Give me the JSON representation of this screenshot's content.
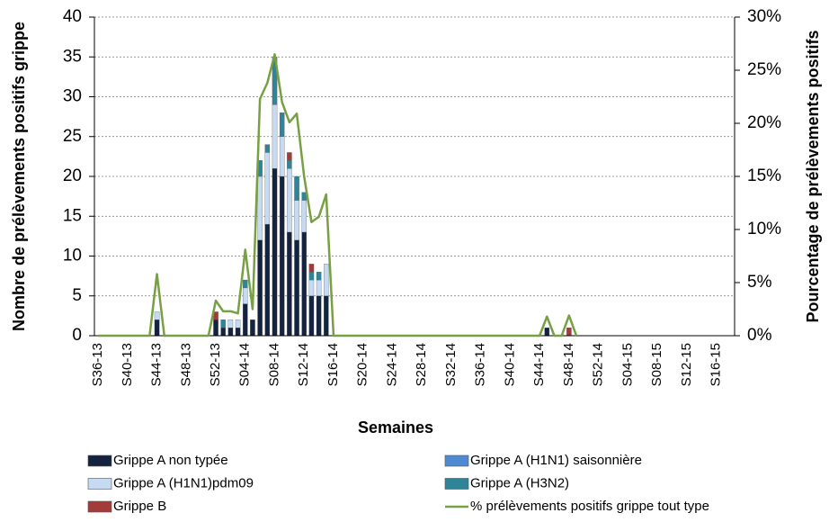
{
  "chart_data": {
    "type": "bar",
    "stacked": true,
    "xlabel": "Semaines",
    "ylabel": "Nombre de prélèvements positifs grippe",
    "y2label": "Pourcentage de prélèvements positifs",
    "categories": [
      "S36-13",
      null,
      null,
      null,
      "S40-13",
      null,
      null,
      null,
      "S44-13",
      null,
      null,
      null,
      "S48-13",
      null,
      null,
      null,
      "S52-13",
      null,
      null,
      null,
      "S04-14",
      null,
      null,
      null,
      "S08-14",
      null,
      null,
      null,
      "S12-14",
      null,
      null,
      null,
      "S16-14",
      null,
      null,
      null,
      "S20-14",
      null,
      null,
      null,
      "S24-14",
      null,
      null,
      null,
      "S28-14",
      null,
      null,
      null,
      "S32-14",
      null,
      null,
      null,
      "S36-14",
      null,
      null,
      null,
      "S40-14",
      null,
      null,
      null,
      "S44-14",
      null,
      null,
      null,
      "S48-14",
      null,
      null,
      null,
      "S52-14",
      null,
      null,
      null,
      "S04-15",
      null,
      null,
      null,
      "S08-15",
      null,
      null,
      null,
      "S12-15",
      null,
      null,
      null,
      "S16-15",
      null,
      null
    ],
    "ylim": [
      0,
      40
    ],
    "yticks": [
      0,
      5,
      10,
      15,
      20,
      25,
      30,
      35,
      40
    ],
    "y2lim": [
      0,
      30
    ],
    "y2ticks": [
      {
        "value": 0,
        "label": "0%"
      },
      {
        "value": 5,
        "label": "5%"
      },
      {
        "value": 10,
        "label": "10%"
      },
      {
        "value": 15,
        "label": "15%"
      },
      {
        "value": 20,
        "label": "20%"
      },
      {
        "value": 25,
        "label": "25%"
      },
      {
        "value": 30,
        "label": "30%"
      }
    ],
    "grid": true,
    "series": [
      {
        "name": "Grippe A non typée",
        "color": "#14233f",
        "values": [
          0,
          0,
          0,
          0,
          0,
          0,
          0,
          0,
          2,
          0,
          0,
          0,
          0,
          0,
          0,
          0,
          2,
          1,
          1,
          1,
          4,
          2,
          12,
          14,
          21,
          20,
          13,
          12,
          13,
          5,
          5,
          5,
          0,
          0,
          0,
          0,
          0,
          0,
          0,
          0,
          0,
          0,
          0,
          0,
          0,
          0,
          0,
          0,
          0,
          0,
          0,
          0,
          0,
          0,
          0,
          0,
          0,
          0,
          0,
          0,
          0,
          1,
          0,
          0,
          0,
          0,
          0,
          0,
          0,
          0,
          0,
          0,
          0,
          0,
          0,
          0,
          0,
          0,
          0,
          0,
          0,
          0,
          0,
          0,
          0,
          0,
          0
        ]
      },
      {
        "name": "Grippe A (H1N1) saisonnière",
        "color": "#4f8ad0",
        "values": [
          0,
          0,
          0,
          0,
          0,
          0,
          0,
          0,
          0,
          0,
          0,
          0,
          0,
          0,
          0,
          0,
          0,
          0,
          0,
          0,
          0,
          0,
          0,
          0,
          0,
          0,
          0,
          0,
          0,
          0,
          0,
          0,
          0,
          0,
          0,
          0,
          0,
          0,
          0,
          0,
          0,
          0,
          0,
          0,
          0,
          0,
          0,
          0,
          0,
          0,
          0,
          0,
          0,
          0,
          0,
          0,
          0,
          0,
          0,
          0,
          0,
          0,
          0,
          0,
          0,
          0,
          0,
          0,
          0,
          0,
          0,
          0,
          0,
          0,
          0,
          0,
          0,
          0,
          0,
          0,
          0,
          0,
          0,
          0,
          0,
          0,
          0
        ]
      },
      {
        "name": "Grippe A (H1N1)pdm09",
        "color": "#c6daf2",
        "values": [
          0,
          0,
          0,
          0,
          0,
          0,
          0,
          0,
          1,
          0,
          0,
          0,
          0,
          0,
          0,
          0,
          0,
          0,
          1,
          1,
          2,
          0,
          8,
          9,
          8,
          5,
          8,
          5,
          4,
          2,
          2,
          4,
          0,
          0,
          0,
          0,
          0,
          0,
          0,
          0,
          0,
          0,
          0,
          0,
          0,
          0,
          0,
          0,
          0,
          0,
          0,
          0,
          0,
          0,
          0,
          0,
          0,
          0,
          0,
          0,
          0,
          0,
          0,
          0,
          0,
          0,
          0,
          0,
          0,
          0,
          0,
          0,
          0,
          0,
          0,
          0,
          0,
          0,
          0,
          0,
          0,
          0,
          0,
          0,
          0,
          0,
          0
        ]
      },
      {
        "name": "Grippe A (H3N2)",
        "color": "#2f8597",
        "values": [
          0,
          0,
          0,
          0,
          0,
          0,
          0,
          0,
          0,
          0,
          0,
          0,
          0,
          0,
          0,
          0,
          0,
          1,
          0,
          0,
          1,
          0,
          2,
          1,
          6,
          3,
          1,
          3,
          1,
          1,
          1,
          0,
          0,
          0,
          0,
          0,
          0,
          0,
          0,
          0,
          0,
          0,
          0,
          0,
          0,
          0,
          0,
          0,
          0,
          0,
          0,
          0,
          0,
          0,
          0,
          0,
          0,
          0,
          0,
          0,
          0,
          0,
          0,
          0,
          0,
          0,
          0,
          0,
          0,
          0,
          0,
          0,
          0,
          0,
          0,
          0,
          0,
          0,
          0,
          0,
          0,
          0,
          0,
          0,
          0,
          0,
          0
        ]
      },
      {
        "name": "Grippe B",
        "color": "#a33b3b",
        "values": [
          0,
          0,
          0,
          0,
          0,
          0,
          0,
          0,
          0,
          0,
          0,
          0,
          0,
          0,
          0,
          0,
          1,
          0,
          0,
          0,
          0,
          0,
          0,
          0,
          0,
          0,
          1,
          0,
          0,
          1,
          0,
          0,
          0,
          0,
          0,
          0,
          0,
          0,
          0,
          0,
          0,
          0,
          0,
          0,
          0,
          0,
          0,
          0,
          0,
          0,
          0,
          0,
          0,
          0,
          0,
          0,
          0,
          0,
          0,
          0,
          0,
          0,
          0,
          0,
          1,
          0,
          0,
          0,
          0,
          0,
          0,
          0,
          0,
          0,
          0,
          0,
          0,
          0,
          0,
          0,
          0,
          0,
          0,
          0,
          0,
          0,
          0
        ]
      },
      {
        "name": "% prélèvements positifs grippe tout type",
        "type": "line",
        "axis": "y2",
        "color": "#77a042",
        "values": [
          0,
          0,
          0,
          0,
          0,
          0,
          0,
          0,
          5.8,
          0,
          0,
          0,
          0,
          0,
          0,
          0,
          3.3,
          2.3,
          2.3,
          2.1,
          8.1,
          2.5,
          22.3,
          23.8,
          26.5,
          22,
          20.1,
          20.9,
          15,
          10.7,
          11.2,
          13.3,
          0,
          0,
          0,
          0,
          0,
          0,
          0,
          0,
          0,
          0,
          0,
          0,
          0,
          0,
          0,
          0,
          0,
          0,
          0,
          0,
          0,
          0,
          0,
          0,
          0,
          0,
          0,
          0,
          0,
          1.8,
          0,
          0,
          1.9,
          0,
          null,
          null,
          null,
          null,
          null,
          null,
          null,
          null,
          null,
          null,
          null,
          null,
          null,
          null,
          null,
          null,
          null,
          null,
          null,
          null,
          null
        ]
      }
    ]
  }
}
